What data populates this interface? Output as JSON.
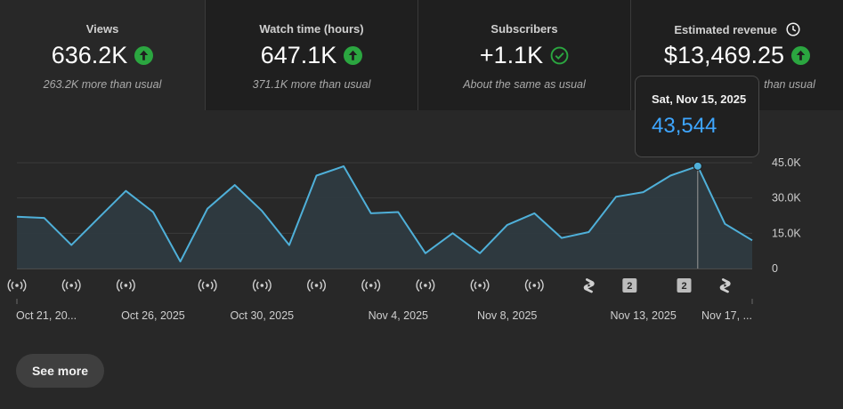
{
  "metrics": [
    {
      "label": "Views",
      "value": "636.2K",
      "trend": "up",
      "sub": "263.2K more than usual"
    },
    {
      "label": "Watch time (hours)",
      "value": "647.1K",
      "trend": "up",
      "sub": "371.1K more than usual"
    },
    {
      "label": "Subscribers",
      "value": "+1.1K",
      "trend": "same",
      "sub": "About the same as usual"
    },
    {
      "label": "Estimated revenue",
      "value": "$13,469.25",
      "trend": "up",
      "sub": "than usual"
    }
  ],
  "tooltip": {
    "date": "Sat, Nov 15, 2025",
    "value": "43,544"
  },
  "colors": {
    "line": "#4fb0d9",
    "area": "#2f3b41",
    "up": "#2ba640",
    "accent": "#3ea6ff"
  },
  "chart_data": {
    "type": "area",
    "y_ticks": [
      "45.0K",
      "30.0K",
      "15.0K",
      "0"
    ],
    "y_tick_values": [
      45000,
      30000,
      15000,
      0
    ],
    "ylim": [
      0,
      45000
    ],
    "x_labels": [
      "Oct 21, 20...",
      "Oct 26, 2025",
      "Oct 30, 2025",
      "Nov 4, 2025",
      "Nov 8, 2025",
      "Nov 13, 2025",
      "Nov 17, ..."
    ],
    "x_label_index": [
      0,
      5,
      9,
      14,
      18,
      23,
      27
    ],
    "values": [
      22000,
      21500,
      10000,
      21500,
      33000,
      24000,
      3000,
      25500,
      35500,
      24500,
      10000,
      39500,
      43500,
      23500,
      24000,
      6500,
      15000,
      6500,
      18500,
      23500,
      13000,
      15500,
      30500,
      32500,
      39500,
      43544,
      19000,
      12000
    ],
    "selected_index": 25,
    "markers": [
      {
        "index": 0,
        "type": "live"
      },
      {
        "index": 2,
        "type": "live"
      },
      {
        "index": 4,
        "type": "live"
      },
      {
        "index": 7,
        "type": "live"
      },
      {
        "index": 9,
        "type": "live"
      },
      {
        "index": 11,
        "type": "live"
      },
      {
        "index": 13,
        "type": "live"
      },
      {
        "index": 15,
        "type": "live"
      },
      {
        "index": 17,
        "type": "live"
      },
      {
        "index": 19,
        "type": "live"
      },
      {
        "index": 21,
        "type": "short"
      },
      {
        "index": 22.5,
        "type": "badge",
        "label": "2"
      },
      {
        "index": 24.5,
        "type": "badge",
        "label": "2"
      },
      {
        "index": 26,
        "type": "short"
      }
    ]
  },
  "see_more": "See more"
}
